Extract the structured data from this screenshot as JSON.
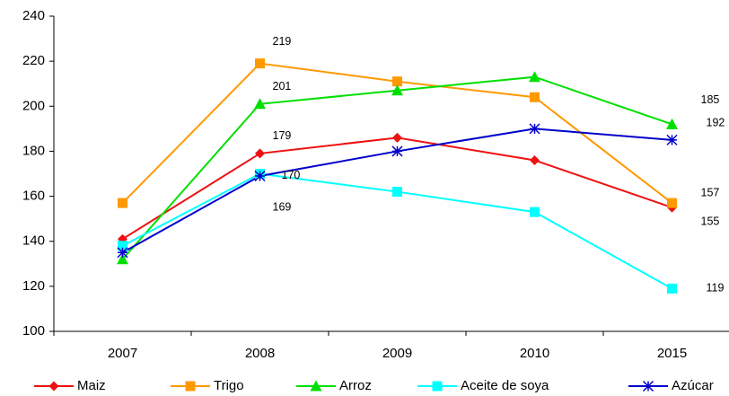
{
  "chart_data": {
    "type": "line",
    "categories": [
      "2007",
      "2008",
      "2009",
      "2010",
      "2015"
    ],
    "ylim": [
      100,
      240
    ],
    "yticks": [
      100,
      120,
      140,
      160,
      180,
      200,
      220,
      240
    ],
    "grid": false,
    "legend": "bottom",
    "series": [
      {
        "name": "Maiz",
        "color": "#ee1111",
        "marker": "diamond",
        "values": [
          141,
          179,
          186,
          176,
          155
        ],
        "value_labels": [
          null,
          "179",
          null,
          null,
          "155"
        ]
      },
      {
        "name": "Trigo",
        "color": "#ff9900",
        "marker": "square",
        "values": [
          157,
          219,
          211,
          204,
          157
        ],
        "value_labels": [
          null,
          "219",
          null,
          null,
          "157"
        ]
      },
      {
        "name": "Arroz",
        "color": "#00e000",
        "marker": "triangle",
        "values": [
          132,
          201,
          207,
          213,
          192
        ],
        "value_labels": [
          null,
          "201",
          null,
          null,
          "192"
        ]
      },
      {
        "name": "Aceite de soya",
        "color": "#00ffff",
        "marker": "square",
        "values": [
          138,
          170,
          162,
          153,
          119
        ],
        "value_labels": [
          null,
          "170",
          null,
          null,
          "119"
        ]
      },
      {
        "name": "Azúcar",
        "color": "#0000cc",
        "marker": "asterisk",
        "values": [
          135,
          169,
          180,
          190,
          185
        ],
        "value_labels": [
          null,
          "169",
          null,
          null,
          "185"
        ]
      }
    ]
  }
}
